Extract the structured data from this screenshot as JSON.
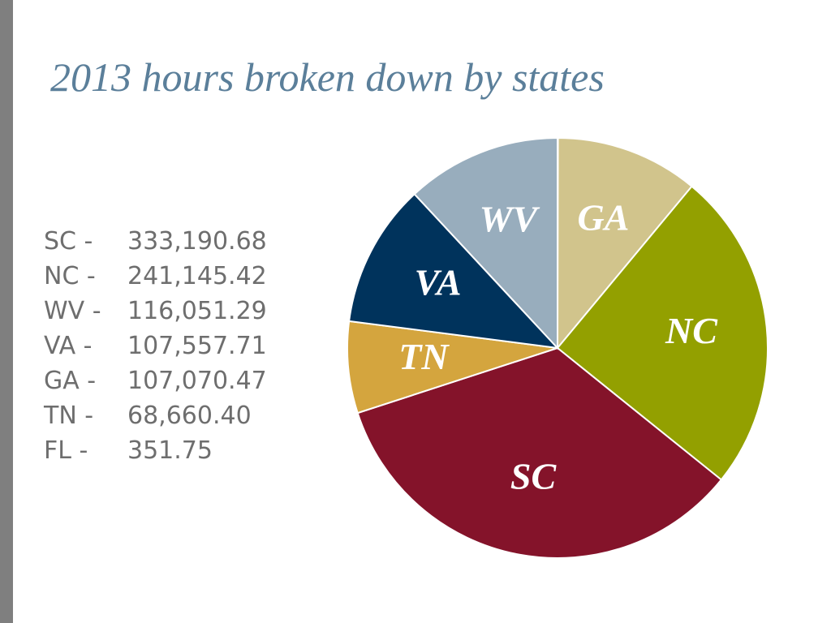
{
  "chart_data": {
    "type": "pie",
    "title": "2013 hours broken down by states",
    "categories": [
      null,
      "GA",
      "NC",
      "SC",
      "TN",
      "VA",
      "WV"
    ],
    "values": [
      351.75,
      107070.47,
      241145.42,
      333190.68,
      68660.4,
      107557.71,
      116051.29
    ],
    "colors": [
      "#c9c9c9",
      "#d1c48c",
      "#93a000",
      "#84132a",
      "#d4a53e",
      "#00335c",
      "#98adbd"
    ]
  },
  "list": {
    "items": [
      {
        "label": "SC -",
        "value": "333,190.68"
      },
      {
        "label": "NC -",
        "value": "241,145.42"
      },
      {
        "label": "WV -",
        "value": "116,051.29"
      },
      {
        "label": "VA -",
        "value": "107,557.71"
      },
      {
        "label": "GA -",
        "value": "107,070.47"
      },
      {
        "label": "TN -",
        "value": "68,660.40"
      },
      {
        "label": "FL -",
        "value": "351.75"
      }
    ]
  }
}
